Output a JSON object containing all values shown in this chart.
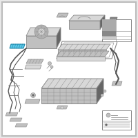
{
  "bg_color": "#e8e8e8",
  "border_color": "#bbbbbb",
  "highlight_color": "#5bc8e8",
  "highlight_dark": "#2288aa",
  "cc": "#c0c0c0",
  "cd": "#888888",
  "cl": "#d8d8d8",
  "cdk": "#666666",
  "wire_color": "#555555",
  "white": "#ffffff",
  "figsize": [
    2.0,
    2.0
  ],
  "dpi": 100
}
